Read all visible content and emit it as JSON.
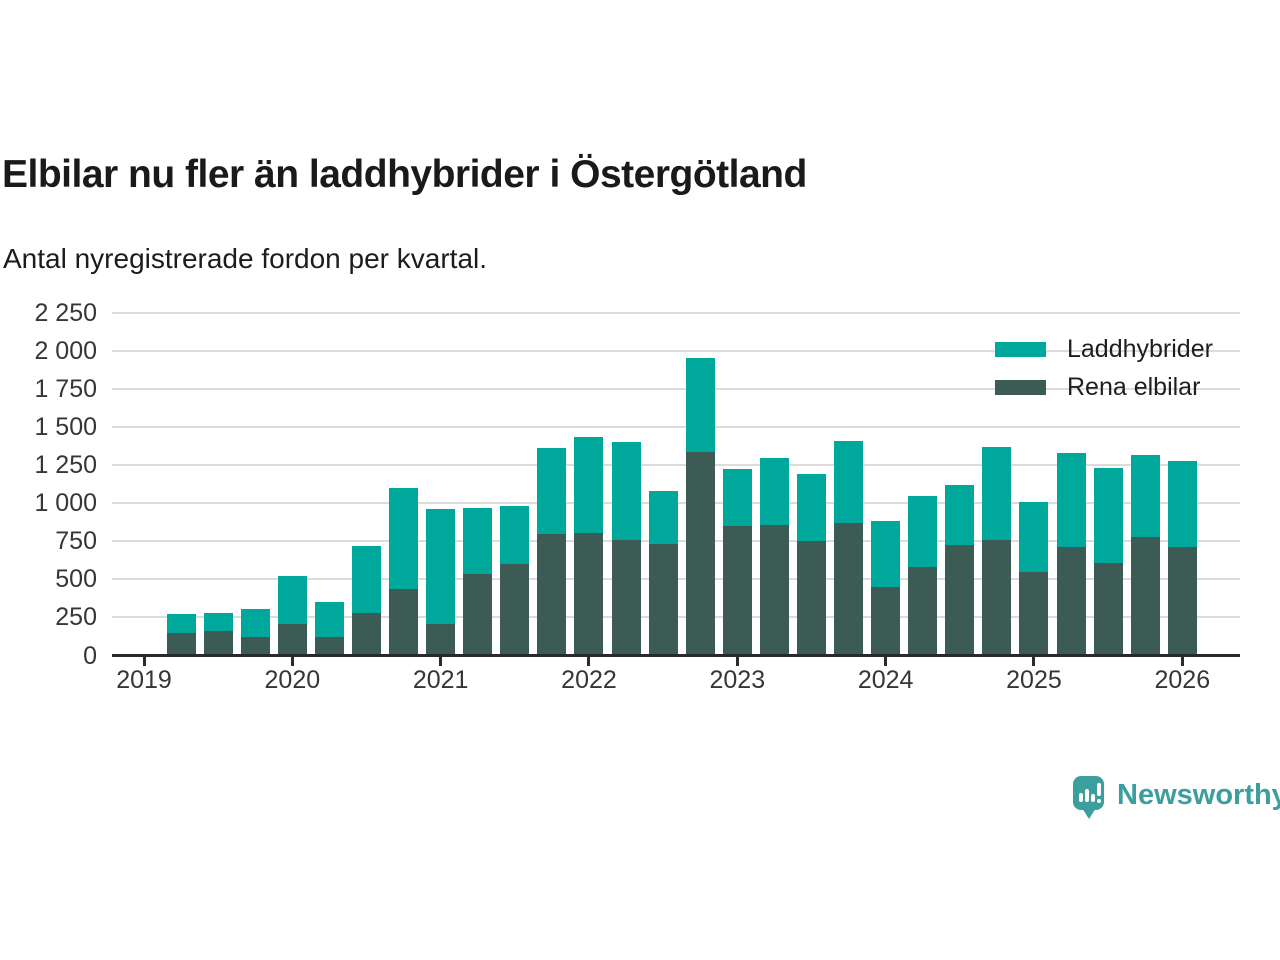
{
  "title": "Elbilar nu fler än laddhybrider i Östergötland",
  "subtitle": "Antal nyregistrerade fordon per kvartal.",
  "brand": {
    "name": "Newsworthy",
    "color": "#3d9e9e",
    "icon": "bar-chart-speech-bubble-icon"
  },
  "legend": [
    {
      "label": "Laddhybrider",
      "color": "#00a79b"
    },
    {
      "label": "Rena elbilar",
      "color": "#3d5b55"
    }
  ],
  "chart_data": {
    "type": "bar",
    "stacked": true,
    "title": "Elbilar nu fler än laddhybrider i Östergötland",
    "subtitle": "Antal nyregistrerade fordon per kvartal.",
    "x": [
      "2019 Q2",
      "2019 Q3",
      "2019 Q4",
      "2020 Q1",
      "2020 Q2",
      "2020 Q3",
      "2020 Q4",
      "2021 Q1",
      "2021 Q2",
      "2021 Q3",
      "2021 Q4",
      "2022 Q1",
      "2022 Q2",
      "2022 Q3",
      "2022 Q4",
      "2023 Q1",
      "2023 Q2",
      "2023 Q3",
      "2023 Q4",
      "2024 Q1",
      "2024 Q2",
      "2024 Q3",
      "2024 Q4",
      "2025 Q1",
      "2025 Q2",
      "2025 Q3",
      "2025 Q4",
      "2026 Q1"
    ],
    "series": [
      {
        "name": "Rena elbilar",
        "color": "#3d5b55",
        "values": [
          145,
          160,
          120,
          210,
          120,
          280,
          435,
          205,
          535,
          600,
          795,
          805,
          760,
          735,
          1335,
          850,
          855,
          755,
          870,
          450,
          580,
          725,
          760,
          550,
          715,
          610,
          780,
          710
        ]
      },
      {
        "name": "Laddhybrider",
        "color": "#00a79b",
        "values": [
          125,
          120,
          185,
          310,
          230,
          440,
          665,
          755,
          435,
          385,
          570,
          630,
          645,
          345,
          620,
          375,
          445,
          440,
          540,
          435,
          465,
          395,
          610,
          460,
          615,
          620,
          540,
          565
        ]
      }
    ],
    "ylim": [
      0,
      2250
    ],
    "yticks": [
      0,
      250,
      500,
      750,
      1000,
      1250,
      1500,
      1750,
      2000,
      2250
    ],
    "ytick_labels": [
      "0",
      "250",
      "500",
      "750",
      "1 000",
      "1 250",
      "1 500",
      "1 750",
      "2 000",
      "2 250"
    ],
    "xticks_years": [
      "2019",
      "2020",
      "2021",
      "2022",
      "2023",
      "2024",
      "2025",
      "2026"
    ],
    "grid": "horizontal",
    "legend_position": "top-right"
  }
}
